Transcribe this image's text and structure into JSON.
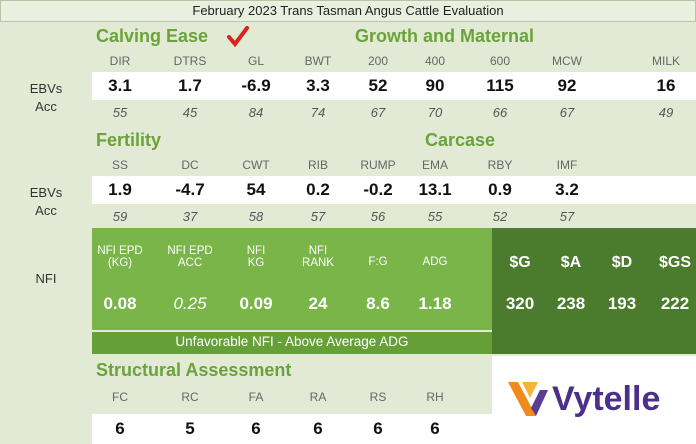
{
  "header": {
    "title": "February 2023 Trans Tasman Angus Cattle Evaluation"
  },
  "calving_growth": {
    "headings": [
      "Calving Ease",
      "Growth and Maternal"
    ],
    "row_labels": [
      "EBVs",
      "Acc"
    ],
    "columns": [
      "DIR",
      "DTRS",
      "GL",
      "BWT",
      "200",
      "400",
      "600",
      "MCW",
      "MILK"
    ],
    "ebvs": [
      "3.1",
      "1.7",
      "-6.9",
      "3.3",
      "52",
      "90",
      "115",
      "92",
      "16"
    ],
    "acc": [
      "55",
      "45",
      "84",
      "74",
      "67",
      "70",
      "66",
      "67",
      "49"
    ]
  },
  "fertility_carcase": {
    "headings": [
      "Fertility",
      "Carcase"
    ],
    "row_labels": [
      "EBVs",
      "Acc"
    ],
    "columns": [
      "SS",
      "DC",
      "CWT",
      "RIB",
      "RUMP",
      "EMA",
      "RBY",
      "IMF"
    ],
    "ebvs": [
      "1.9",
      "-4.7",
      "54",
      "0.2",
      "-0.2",
      "13.1",
      "0.9",
      "3.2"
    ],
    "acc": [
      "59",
      "37",
      "58",
      "57",
      "56",
      "55",
      "52",
      "57"
    ]
  },
  "nfi": {
    "label": "NFI",
    "columns": [
      "NFI EPD\n(KG)",
      "NFI EPD\nACC",
      "NFI\nKG",
      "NFI\nRANK",
      "F:G",
      "ADG"
    ],
    "values": [
      "0.08",
      "0.25",
      "0.09",
      "24",
      "8.6",
      "1.18"
    ],
    "note": "Unfavorable NFI - Above Average ADG"
  },
  "indexes": {
    "columns": [
      "$G",
      "$A",
      "$D",
      "$GS"
    ],
    "values": [
      "320",
      "238",
      "193",
      "222"
    ]
  },
  "structural": {
    "heading": "Structural Assessment",
    "columns": [
      "FC",
      "RC",
      "FA",
      "RA",
      "RS",
      "RH"
    ],
    "values": [
      "6",
      "5",
      "6",
      "6",
      "6",
      "6"
    ]
  },
  "logo": {
    "text": "Vytelle"
  }
}
